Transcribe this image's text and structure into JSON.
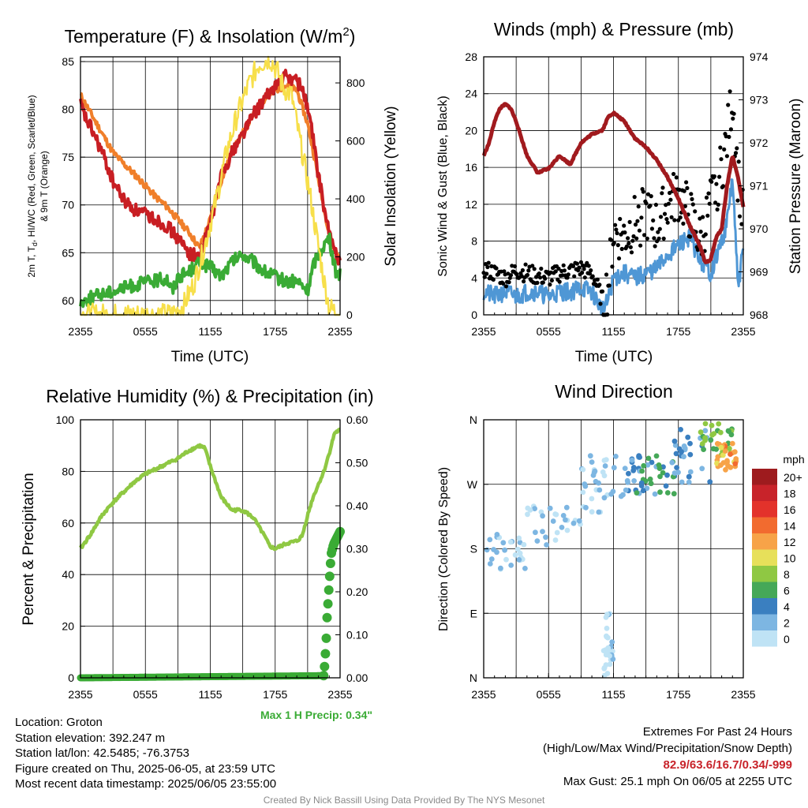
{
  "chart_data": [
    {
      "panel": "temperature",
      "type": "line",
      "title_base": "Temperature (F) & Insolation (W/m",
      "title_sup": "2",
      "title_tail": ")",
      "ylabel_left_line1": "2m T, T",
      "ylabel_left_sub": "d",
      "ylabel_left_line1_tail": ", HI/WC (Red, Green, Scarlet/Blue)",
      "ylabel_left_line2": "& 9m T (Orange)",
      "ylabel_right": "Solar Insolation (Yellow)",
      "xlabel": "Time (UTC)",
      "x_ticks": [
        "2355",
        "0555",
        "1155",
        "1755",
        "2355"
      ],
      "y_ticks": [
        "60",
        "65",
        "70",
        "75",
        "80",
        "85"
      ],
      "y_ticks_right": [
        "0",
        "200",
        "400",
        "600",
        "800"
      ],
      "ylim": [
        58.5,
        85.5
      ],
      "ylim_right": [
        0,
        890
      ],
      "x_hours": [
        0,
        24
      ],
      "series": [
        {
          "color": "#f07f2a",
          "x": [
            0,
            1,
            2,
            3,
            4,
            5,
            6,
            7,
            8,
            9,
            10,
            11,
            12,
            13,
            14,
            15,
            16,
            17,
            18,
            19,
            20,
            21,
            21.8,
            22.6,
            23.4,
            24
          ],
          "y": [
            81.5,
            79.5,
            77.5,
            75.5,
            74.3,
            73.2,
            72.0,
            70.8,
            69.8,
            68.5,
            67.2,
            65.5,
            68.5,
            72.5,
            75.5,
            77.5,
            79.5,
            81.0,
            82.0,
            82.5,
            82.0,
            78.5,
            74.0,
            69.0,
            65.5,
            64.5
          ]
        },
        {
          "color": "#c81e23",
          "x": [
            0,
            0.5,
            1,
            2,
            3,
            4,
            5,
            6,
            7,
            8,
            9,
            10,
            11,
            12,
            13,
            14,
            15,
            16,
            17,
            18,
            19,
            20,
            20.6,
            21.3,
            22,
            22.8,
            23.5,
            24
          ],
          "y": [
            80.5,
            79.0,
            78.0,
            75.5,
            72.5,
            70.5,
            69.5,
            69.0,
            68.5,
            67.8,
            66.5,
            65.0,
            64.5,
            68.0,
            73.0,
            75.5,
            77.5,
            79.5,
            81.0,
            82.5,
            83.5,
            83.0,
            82.0,
            78.5,
            73.0,
            68.0,
            65.0,
            64.2
          ]
        },
        {
          "color": "#3aab35",
          "x": [
            0,
            1,
            2,
            3,
            4,
            5,
            6,
            7,
            8,
            8.5,
            9,
            10,
            11,
            12,
            13,
            14,
            15,
            16,
            17,
            18,
            19,
            20,
            21,
            21.6,
            22.3,
            23,
            23.6,
            24
          ],
          "y": [
            59.8,
            60.3,
            60.7,
            61.0,
            61.3,
            61.6,
            61.9,
            62.1,
            62.3,
            61.0,
            62.5,
            63.0,
            64.0,
            63.5,
            62.5,
            64.0,
            64.8,
            64.0,
            63.0,
            62.5,
            62.0,
            62.0,
            61.0,
            64.0,
            65.5,
            66.5,
            63.0,
            62.8
          ]
        },
        {
          "color": "#f7df4a",
          "x": [
            0,
            2,
            4,
            6,
            7.5,
            8.5,
            9.5,
            10.5,
            11.5,
            12.5,
            13.5,
            14.5,
            15.5,
            16.5,
            17.5,
            18.2,
            18.8,
            19.5,
            20.5,
            21.2,
            21.8,
            22.5,
            23,
            24
          ],
          "y": [
            0,
            0,
            0,
            0,
            0,
            2,
            30,
            110,
            240,
            390,
            560,
            690,
            790,
            865,
            885,
            840,
            780,
            760,
            560,
            420,
            280,
            120,
            25,
            0
          ]
        }
      ]
    },
    {
      "panel": "winds",
      "type": "line",
      "title": "Winds (mph) & Pressure (mb)",
      "ylabel_left": "Sonic Wind & Gust (Blue, Black)",
      "ylabel_right": "Station Pressure (Maroon)",
      "xlabel": "Time (UTC)",
      "x_ticks": [
        "2355",
        "0555",
        "1155",
        "1755",
        "2355"
      ],
      "y_ticks": [
        "0",
        "4",
        "8",
        "12",
        "16",
        "20",
        "24",
        "28"
      ],
      "y_ticks_right": [
        "968",
        "969",
        "970",
        "971",
        "972",
        "973",
        "974"
      ],
      "ylim": [
        0,
        28
      ],
      "ylim_right": [
        968,
        974
      ],
      "x_hours": [
        0,
        24
      ],
      "series": [
        {
          "color": "#4f97d5",
          "x": [
            0,
            1,
            2,
            3,
            4,
            5,
            6,
            7,
            8,
            9,
            10,
            10.5,
            11,
            11.5,
            12,
            13,
            14,
            15,
            16,
            17,
            18,
            19,
            20,
            21,
            22,
            22.5,
            23,
            23.5,
            24
          ],
          "y": [
            2.5,
            2.0,
            2.5,
            2.0,
            2.5,
            2.5,
            2.0,
            2.5,
            2.5,
            3.0,
            2.5,
            1.5,
            0.5,
            1.5,
            4.0,
            4.5,
            4.0,
            4.5,
            5.0,
            6.5,
            7.5,
            8.5,
            6.0,
            4.5,
            8.0,
            10.0,
            15.0,
            3.0,
            7.0
          ]
        },
        {
          "color": "#000000",
          "x": [
            0,
            1,
            2,
            3,
            4,
            5,
            6,
            7,
            8,
            9,
            10,
            10.5,
            11,
            11.5,
            12,
            13,
            14,
            15,
            16,
            17,
            18,
            19,
            20,
            21,
            22,
            22.5,
            23,
            23.5,
            24
          ],
          "y": [
            5.0,
            4.5,
            4.0,
            4.8,
            4.5,
            4.2,
            4.0,
            4.5,
            4.8,
            5.0,
            4.5,
            3.0,
            1.5,
            3.0,
            9.0,
            8.5,
            10.0,
            11.0,
            9.5,
            12.0,
            13.0,
            11.0,
            8.0,
            12.0,
            16.0,
            19.0,
            24.0,
            15.0,
            10.0
          ]
        },
        {
          "color": "#a11a1e",
          "axis": "right",
          "x": [
            0,
            0.5,
            1,
            1.5,
            2,
            2.5,
            3,
            4,
            5,
            6,
            7,
            8,
            9,
            10,
            11,
            11.5,
            12,
            12.5,
            13,
            14,
            15,
            16,
            17,
            18,
            18.5,
            19,
            20,
            20.5,
            21,
            21.5,
            22,
            22.5,
            23,
            23.5,
            24
          ],
          "y": [
            971.7,
            972.0,
            972.5,
            972.8,
            972.9,
            972.8,
            972.5,
            971.7,
            971.3,
            971.4,
            971.7,
            971.5,
            972.0,
            972.2,
            972.3,
            972.6,
            972.7,
            972.6,
            972.5,
            972.1,
            971.9,
            971.6,
            971.2,
            970.7,
            970.4,
            970.1,
            969.6,
            969.2,
            969.3,
            969.8,
            970.0,
            971.0,
            971.7,
            971.2,
            970.5
          ]
        }
      ],
      "gust_dots": {
        "color": "#000000"
      }
    },
    {
      "panel": "humidity",
      "type": "line",
      "title": "Relative Humidity (%) & Precipitation (in)",
      "ylabel_left": "Percent & Precipitation",
      "x_ticks": [
        "2355",
        "0555",
        "1155",
        "1755",
        "2355"
      ],
      "y_ticks": [
        "0",
        "20",
        "40",
        "60",
        "80",
        "100"
      ],
      "y_ticks_right": [
        "0.00",
        "0.10",
        "0.20",
        "0.30",
        "0.40",
        "0.50",
        "0.60"
      ],
      "ylim": [
        0,
        100
      ],
      "ylim_right": [
        0,
        0.6
      ],
      "x_hours": [
        0,
        24
      ],
      "series": [
        {
          "color": "#8fc843",
          "x": [
            0,
            0.5,
            1,
            2,
            3,
            4,
            5,
            6,
            7,
            8,
            9,
            10,
            11,
            11.5,
            12,
            13,
            14,
            15,
            16,
            17,
            17.5,
            18,
            19,
            20,
            20.5,
            21,
            21.5,
            22,
            22.5,
            23,
            23.5,
            24
          ],
          "y": [
            50,
            53,
            56,
            63,
            68,
            72,
            76,
            79,
            81,
            83,
            85,
            88,
            90,
            89,
            82,
            70,
            65,
            65,
            62,
            55,
            51,
            50,
            52,
            53,
            55,
            63,
            70,
            75,
            80,
            87,
            95,
            96
          ]
        },
        {
          "color": "#3aab35",
          "axis": "right",
          "x": [
            0,
            22.5,
            22.6,
            22.7,
            22.8,
            23.0,
            23.1,
            23.2,
            23.4,
            23.6,
            23.8,
            24
          ],
          "y": [
            0,
            0.005,
            0.04,
            0.08,
            0.14,
            0.22,
            0.26,
            0.29,
            0.31,
            0.32,
            0.33,
            0.34
          ]
        }
      ],
      "annotation": "Max 1 H Precip: 0.34\""
    },
    {
      "panel": "wind_direction",
      "type": "scatter",
      "title": "Wind Direction",
      "ylabel_left": "Direction (Colored By Speed)",
      "x_ticks": [
        "2355",
        "0555",
        "1155",
        "1755",
        "2355"
      ],
      "y_ticks": [
        "N",
        "E",
        "S",
        "W",
        "N"
      ],
      "ylim": [
        0,
        360
      ],
      "x_hours": [
        0,
        24
      ],
      "legend_title": "mph",
      "legend_labels": [
        "20+",
        "18",
        "16",
        "14",
        "12",
        "10",
        "8",
        "6",
        "4",
        "2",
        "0"
      ],
      "legend_colors": [
        "#9e1b1e",
        "#c8232a",
        "#e3322b",
        "#f26b2f",
        "#f7a348",
        "#e7e05a",
        "#8fc843",
        "#45a858",
        "#3a7fc0",
        "#7db6e2",
        "#bfe3f5"
      ],
      "clusters": [
        {
          "x": [
            0,
            4
          ],
          "y": [
            150,
            200
          ],
          "speed": 2
        },
        {
          "x": [
            4,
            9
          ],
          "y": [
            185,
            240
          ],
          "speed": 2
        },
        {
          "x": [
            9,
            11.5
          ],
          "y": [
            230,
            310
          ],
          "speed": 2
        },
        {
          "x": [
            11.5,
            16
          ],
          "y": [
            250,
            310
          ],
          "speed": 4
        },
        {
          "x": [
            14,
            18
          ],
          "y": [
            255,
            310
          ],
          "speed": 6
        },
        {
          "x": [
            17,
            21
          ],
          "y": [
            270,
            350
          ],
          "speed": 4
        },
        {
          "x": [
            20,
            23
          ],
          "y": [
            310,
            360
          ],
          "speed": 8
        },
        {
          "x": [
            21.5,
            23.5
          ],
          "y": [
            290,
            330
          ],
          "speed": 13
        },
        {
          "x": [
            11,
            12
          ],
          "y": [
            0,
            90
          ],
          "speed": 1
        }
      ]
    }
  ],
  "info": {
    "location": "Location: Groton",
    "elevation": "Station elevation: 392.247 m",
    "latlon": "Station lat/lon: 42.5485; -76.3753",
    "created": "Figure created on Thu, 2025-06-05, at 23:59 UTC",
    "recent": "Most recent data timestamp: 2025/06/05 23:55:00"
  },
  "extremes": {
    "line1": "Extremes For Past 24 Hours",
    "line2": "(High/Low/Max Wind/Precipitation/Snow Depth)",
    "values": "82.9/63.6/16.7/0.34/-999",
    "gust": "Max Gust: 25.1 mph On 06/05 at 2255 UTC",
    "values_color": "#c8232a"
  },
  "footer": "Created By Nick Bassill Using Data Provided By The NYS Mesonet"
}
